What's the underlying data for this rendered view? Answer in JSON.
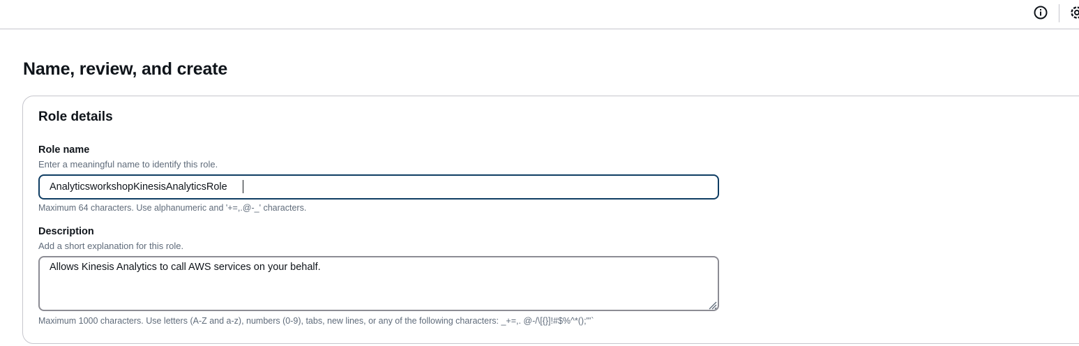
{
  "header": {
    "info_icon": "info-icon",
    "settings_icon": "settings-icon"
  },
  "page": {
    "title": "Name, review, and create"
  },
  "role_details": {
    "title": "Role details",
    "role_name": {
      "label": "Role name",
      "description": "Enter a meaningful name to identify this role.",
      "value": "AnalyticsworkshopKinesisAnalyticsRole",
      "constraint": "Maximum 64 characters. Use alphanumeric and '+=,.@-_' characters."
    },
    "description": {
      "label": "Description",
      "description": "Add a short explanation for this role.",
      "value": "Allows Kinesis Analytics to call AWS services on your behalf.",
      "constraint": "Maximum 1000 characters. Use letters (A-Z and a-z), numbers (0-9), tabs, new lines, or any of the following characters: _+=,. @-/\\[{}]!#$%^*();\"'`"
    }
  },
  "colors": {
    "focus_border": "#0f3d63",
    "panel_border": "#c6c6cd",
    "muted_text": "#5f6b7a"
  }
}
